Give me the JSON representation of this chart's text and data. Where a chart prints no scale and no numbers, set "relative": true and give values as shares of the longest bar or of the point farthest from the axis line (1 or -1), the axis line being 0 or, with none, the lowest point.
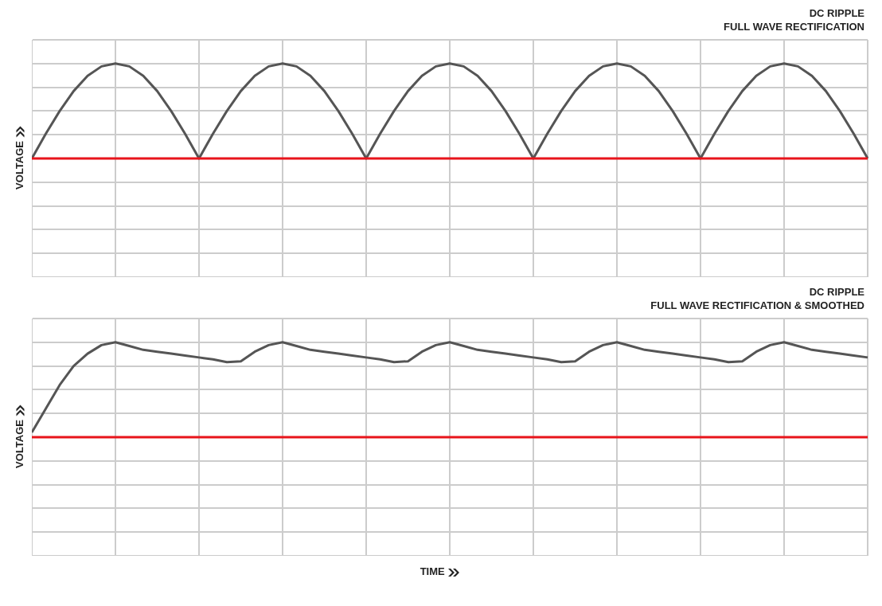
{
  "chart_data": [
    {
      "type": "line",
      "title": "DC RIPPLE",
      "subtitle": "FULL WAVE RECTIFICATION",
      "ylabel": "VOLTAGE",
      "relative": true,
      "grid": true,
      "categories": [
        null,
        null,
        null,
        null,
        null,
        null,
        null,
        null,
        null,
        null,
        null,
        null,
        null,
        null,
        null,
        null,
        null,
        null,
        null,
        null,
        null,
        null,
        null,
        null,
        null,
        null,
        null,
        null,
        null,
        null,
        null,
        null,
        null,
        null,
        null,
        null,
        null,
        null,
        null,
        null,
        null,
        null,
        null,
        null,
        null,
        null,
        null,
        null,
        null,
        null,
        null,
        null,
        null,
        null,
        null,
        null,
        null,
        null,
        null,
        null,
        null
      ],
      "series": [
        {
          "color": "#555555",
          "values": [
            0,
            0.26,
            0.5,
            0.71,
            0.87,
            0.97,
            1,
            0.97,
            0.87,
            0.71,
            0.5,
            0.26,
            0,
            0.26,
            0.5,
            0.71,
            0.87,
            0.97,
            1,
            0.97,
            0.87,
            0.71,
            0.5,
            0.26,
            0,
            0.26,
            0.5,
            0.71,
            0.87,
            0.97,
            1,
            0.97,
            0.87,
            0.71,
            0.5,
            0.26,
            0,
            0.26,
            0.5,
            0.71,
            0.87,
            0.97,
            1,
            0.97,
            0.87,
            0.71,
            0.5,
            0.26,
            0,
            0.26,
            0.5,
            0.71,
            0.87,
            0.97,
            1,
            0.97,
            0.87,
            0.71,
            0.5,
            0.26,
            0
          ]
        }
      ],
      "ref_lines": [
        {
          "axis": "y",
          "value": 0,
          "color": "#e8141b"
        }
      ]
    },
    {
      "type": "line",
      "title": "DC RIPPLE",
      "subtitle": "FULL WAVE RECTIFICATION & SMOOTHED",
      "ylabel": "VOLTAGE",
      "xlabel": "TIME",
      "relative": true,
      "grid": true,
      "categories": [
        null,
        null,
        null,
        null,
        null,
        null,
        null,
        null,
        null,
        null,
        null,
        null,
        null,
        null,
        null,
        null,
        null,
        null,
        null,
        null,
        null,
        null,
        null,
        null,
        null,
        null,
        null,
        null,
        null,
        null,
        null,
        null,
        null,
        null,
        null,
        null,
        null,
        null,
        null,
        null,
        null,
        null,
        null,
        null,
        null,
        null,
        null,
        null,
        null,
        null,
        null,
        null,
        null,
        null,
        null,
        null,
        null,
        null,
        null,
        null,
        null
      ],
      "series": [
        {
          "color": "#555555",
          "values": [
            0.05,
            0.3,
            0.55,
            0.75,
            0.88,
            0.97,
            1,
            0.96,
            0.92,
            0.9,
            0.88,
            0.86,
            0.84,
            0.82,
            0.79,
            0.8,
            0.9,
            0.97,
            1,
            0.96,
            0.92,
            0.9,
            0.88,
            0.86,
            0.84,
            0.82,
            0.79,
            0.8,
            0.9,
            0.97,
            1,
            0.96,
            0.92,
            0.9,
            0.88,
            0.86,
            0.84,
            0.82,
            0.79,
            0.8,
            0.9,
            0.97,
            1,
            0.96,
            0.92,
            0.9,
            0.88,
            0.86,
            0.84,
            0.82,
            0.79,
            0.8,
            0.9,
            0.97,
            1,
            0.96,
            0.92,
            0.9,
            0.88,
            0.86,
            0.84
          ]
        }
      ],
      "ref_lines": [
        {
          "axis": "y",
          "value": 0,
          "color": "#e8141b"
        }
      ]
    }
  ]
}
